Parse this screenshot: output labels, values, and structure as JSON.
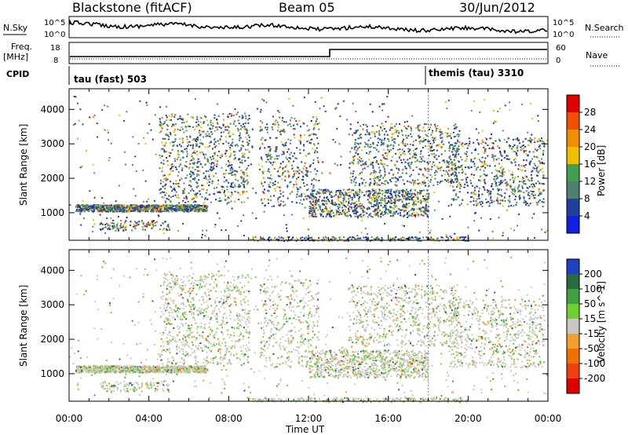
{
  "header": {
    "station": "Blackstone (fitACF)",
    "beam": "Beam 05",
    "date": "30/Jun/2012"
  },
  "top_panels": {
    "nsky_label": "N.Sky",
    "nsky_ticks": [
      "10^5",
      "10^0"
    ],
    "nsearch_label": "N.Search",
    "nsearch_ticks": [
      "10^5",
      "10^0"
    ],
    "freq_label": "Freq.",
    "freq_unit": "[MHz]",
    "freq_ticks": [
      "18",
      "8"
    ],
    "nave_label": "Nave",
    "nave_ticks": [
      "60",
      "0"
    ],
    "cpid_label": "CPID",
    "cpid_modes": [
      {
        "name": "tau (fast) 503",
        "start_hour": 0
      },
      {
        "name": "themis (tau) 3310",
        "start_hour": 18
      }
    ]
  },
  "chart_data": [
    {
      "type": "heatmap",
      "name": "power",
      "ylabel": "Slant Range [km]",
      "xlabel": "",
      "x_ticks": [
        "00:00",
        "04:00",
        "08:00",
        "12:00",
        "16:00",
        "20:00",
        "00:00"
      ],
      "y_ticks": [
        1000,
        2000,
        3000,
        4000
      ],
      "ylim": [
        200,
        4600
      ],
      "xlim_hours": [
        0,
        24
      ],
      "colorbar_label": "Power [dB]",
      "colorbar_ticks": [
        "28",
        "24",
        "20",
        "16",
        "12",
        "8",
        "4"
      ],
      "colorbar_colors": [
        "#e00000",
        "#f05000",
        "#f09000",
        "#f0c000",
        "#40a050",
        "#508070",
        "#2040a0",
        "#1020e0"
      ]
    },
    {
      "type": "heatmap",
      "name": "velocity",
      "ylabel": "Slant Range [km]",
      "xlabel": "Time UT",
      "x_ticks": [
        "00:00",
        "04:00",
        "08:00",
        "12:00",
        "16:00",
        "20:00",
        "00:00"
      ],
      "y_ticks": [
        1000,
        2000,
        3000,
        4000
      ],
      "ylim": [
        200,
        4600
      ],
      "xlim_hours": [
        0,
        24
      ],
      "colorbar_label": "Velocity [m s^-1]",
      "colorbar_ticks": [
        "200",
        "100",
        "50",
        "15",
        "-15",
        "-50",
        "-100",
        "-200"
      ],
      "colorbar_colors": [
        "#2040c0",
        "#2a6a40",
        "#40a040",
        "#70d030",
        "#c8c8c0",
        "#f0a030",
        "#f07000",
        "#f04010",
        "#e00000"
      ]
    }
  ]
}
